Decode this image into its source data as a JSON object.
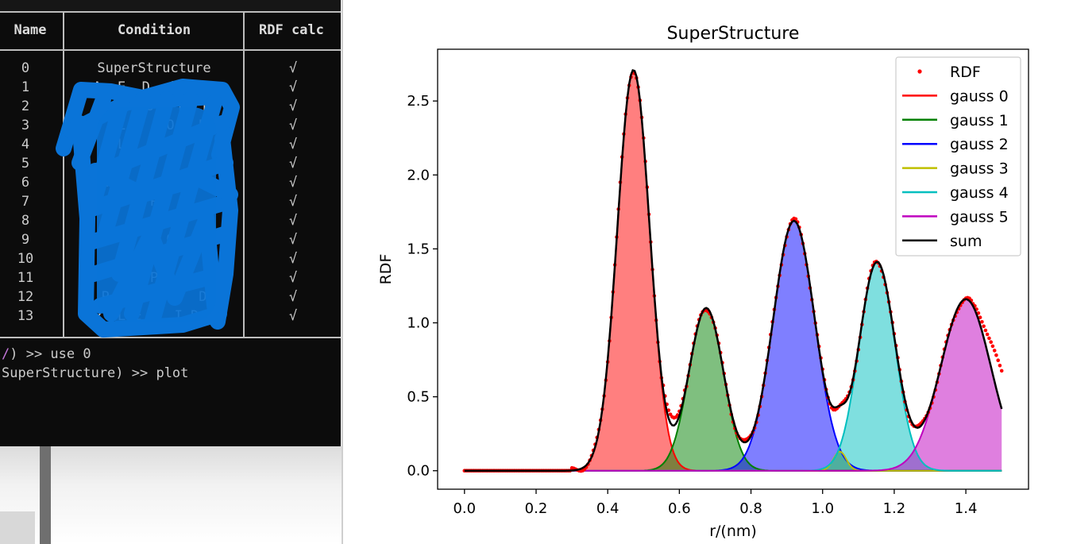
{
  "terminal": {
    "columns": [
      "Name",
      "Condition",
      "RDF calc"
    ],
    "rows": [
      {
        "name": "0",
        "condition": "SuperStructure",
        "rdf": "√"
      },
      {
        "name": "1",
        "condition": "A  E  D  d    D",
        "rdf": "√"
      },
      {
        "name": "2",
        "condition": "  L   O   D  D",
        "rdf": "√"
      },
      {
        "name": "3",
        "condition": "  L     O   R",
        "rdf": "√"
      },
      {
        "name": "4",
        "condition": "  L     O   R",
        "rdf": "√"
      },
      {
        "name": "5",
        "condition": "P       D  O",
        "rdf": "√"
      },
      {
        "name": "6",
        "condition": "P       L  O",
        "rdf": "√"
      },
      {
        "name": "7",
        "condition": "P",
        "rdf": "√"
      },
      {
        "name": "8",
        "condition": "P   E   O   R",
        "rdf": "√"
      },
      {
        "name": "9",
        "condition": "P       O   D",
        "rdf": "√"
      },
      {
        "name": "10",
        "condition": "P       O",
        "rdf": "√"
      },
      {
        "name": "11",
        "condition": "P",
        "rdf": "√"
      },
      {
        "name": "12",
        "condition": "P       O   D",
        "rdf": "√"
      },
      {
        "name": "13",
        "condition": "P  L E    I D R",
        "rdf": "√"
      }
    ],
    "commands": [
      {
        "prefix": "/",
        "text": ") >> use 0"
      },
      {
        "prefix": "",
        "text": "SuperStructure) >> plot"
      }
    ],
    "colors": {
      "background": "#0c0c0c",
      "text": "#cccccc",
      "scribble": "#0a74d8",
      "prompt_accent": "#c678dd"
    }
  },
  "chart_data": {
    "type": "area",
    "title": "SuperStructure",
    "xlabel": "r/(nm)",
    "ylabel": "RDF",
    "xlim": [
      -0.075,
      1.575
    ],
    "ylim": [
      -0.125,
      2.85
    ],
    "xticks": [
      "0.0",
      "0.2",
      "0.4",
      "0.6",
      "0.8",
      "1.0",
      "1.2",
      "1.4"
    ],
    "yticks": [
      "0.0",
      "0.5",
      "1.0",
      "1.5",
      "2.0",
      "2.5"
    ],
    "legend_position": "top-right",
    "legend": [
      "RDF",
      "gauss 0",
      "gauss 1",
      "gauss 2",
      "gauss 3",
      "gauss 4",
      "gauss 5",
      "sum"
    ],
    "colors": {
      "rdf": "#ff0000",
      "gauss 0": "#ff0000",
      "gauss 1": "#008000",
      "gauss 2": "#0000ff",
      "gauss 3": "#bfbf00",
      "gauss 4": "#00bfbf",
      "gauss 5": "#bf00bf",
      "sum": "#000000"
    },
    "series": [
      {
        "name": "gauss 0",
        "center": 0.472,
        "amplitude": 2.71,
        "sigma": 0.045
      },
      {
        "name": "gauss 1",
        "center": 0.675,
        "amplitude": 1.1,
        "sigma": 0.048
      },
      {
        "name": "gauss 2",
        "center": 0.92,
        "amplitude": 1.69,
        "sigma": 0.058
      },
      {
        "name": "gauss 3",
        "center": 1.048,
        "amplitude": 0.13,
        "sigma": 0.018
      },
      {
        "name": "gauss 4",
        "center": 1.152,
        "amplitude": 1.41,
        "sigma": 0.05
      },
      {
        "name": "gauss 5",
        "center": 1.4,
        "amplitude": 1.16,
        "sigma": 0.07
      }
    ],
    "rdf_points": {
      "x_range": [
        0.0,
        1.5
      ],
      "step": 0.005
    }
  }
}
